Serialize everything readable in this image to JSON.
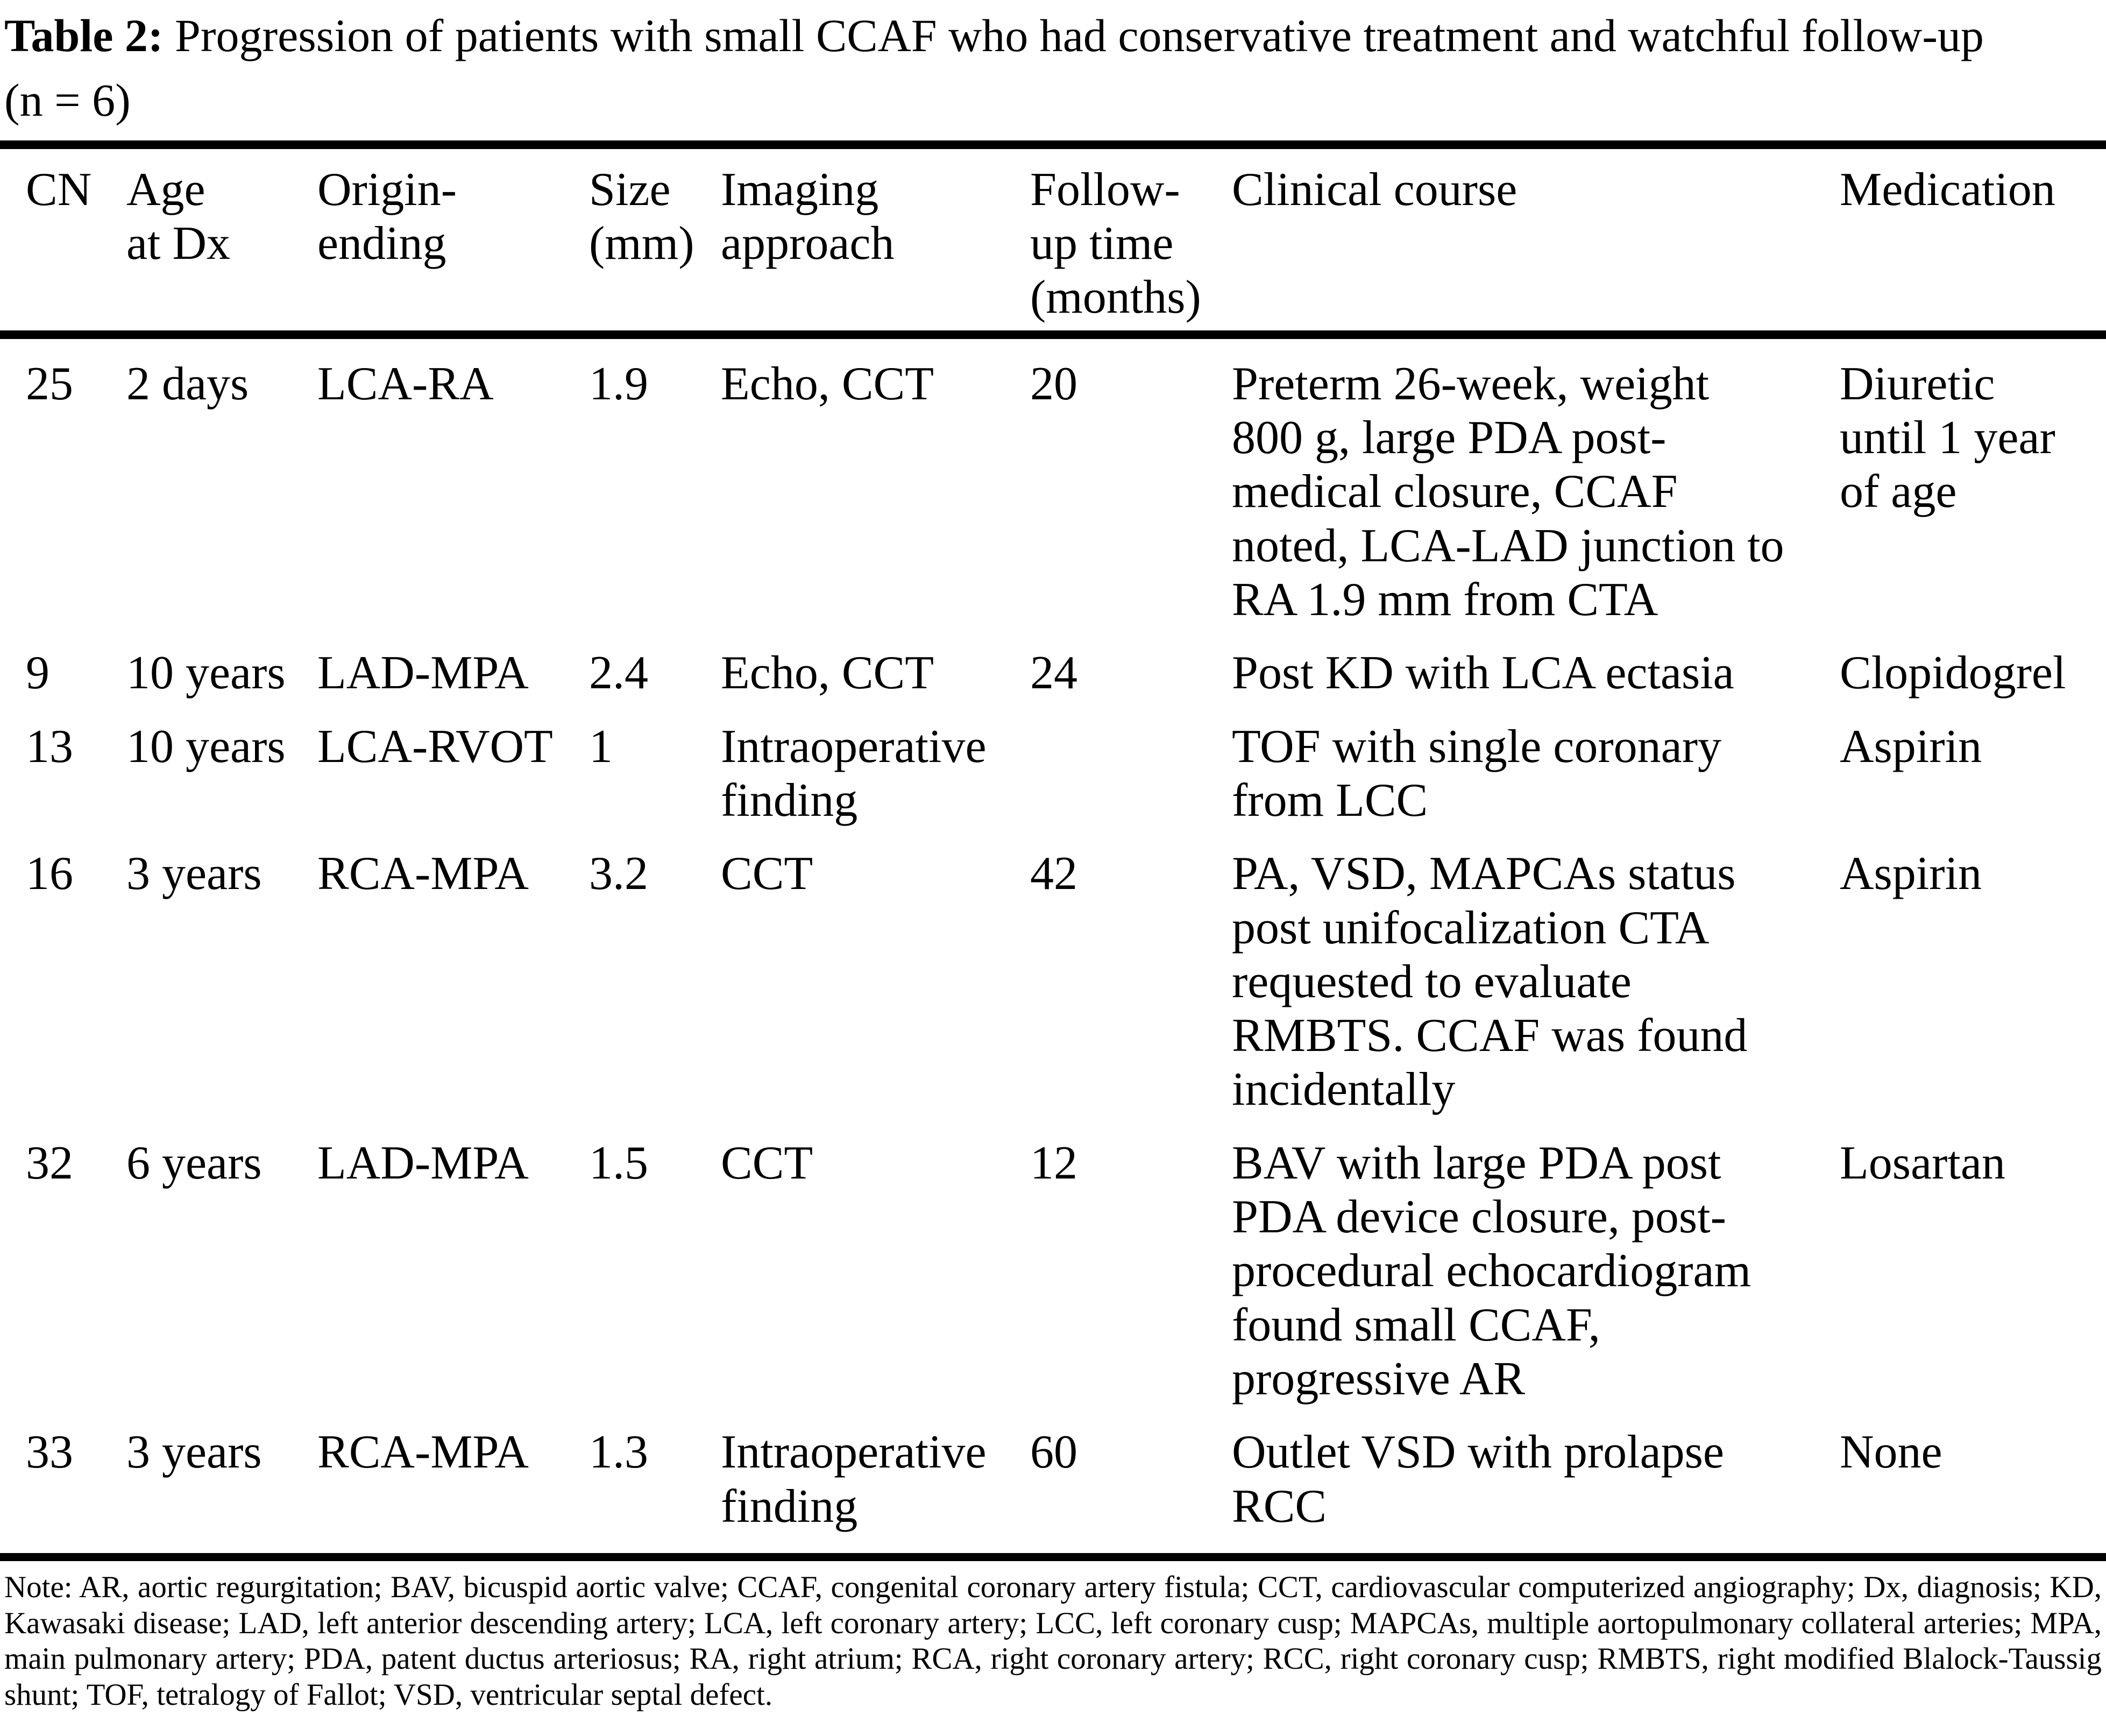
{
  "title": {
    "label": "Table 2:",
    "text": "Progression of patients with small CCAF who had conservative treatment and watchful follow-up",
    "sample_size": "(n = 6)"
  },
  "table": {
    "columns": [
      {
        "key": "cn",
        "label": "CN"
      },
      {
        "key": "age",
        "label": "Age\nat Dx"
      },
      {
        "key": "origin",
        "label": "Origin-\nending"
      },
      {
        "key": "size",
        "label": "Size\n(mm)"
      },
      {
        "key": "imaging",
        "label": "Imaging\napproach"
      },
      {
        "key": "followup",
        "label": "Follow-\nup time\n(months)"
      },
      {
        "key": "course",
        "label": "Clinical course"
      },
      {
        "key": "medication",
        "label": "Medication"
      }
    ],
    "rows": [
      {
        "cn": "25",
        "age": "2 days",
        "origin": "LCA-RA",
        "size": "1.9",
        "imaging": "Echo, CCT",
        "followup": "20",
        "course": "Preterm 26-week, weight\n800 g, large PDA post-\nmedical closure, CCAF\nnoted, LCA-LAD junction to\nRA 1.9 mm from CTA",
        "medication": "Diuretic\nuntil 1 year\nof age"
      },
      {
        "cn": "9",
        "age": "10 years",
        "origin": "LAD-MPA",
        "size": "2.4",
        "imaging": "Echo, CCT",
        "followup": "24",
        "course": "Post KD with LCA ectasia",
        "medication": "Clopidogrel"
      },
      {
        "cn": "13",
        "age": "10 years",
        "origin": "LCA-RVOT",
        "size": "1",
        "imaging": "Intraoperative\nfinding",
        "followup": "",
        "course": "TOF with single coronary\nfrom LCC",
        "medication": "Aspirin"
      },
      {
        "cn": "16",
        "age": "3 years",
        "origin": "RCA-MPA",
        "size": "3.2",
        "imaging": "CCT",
        "followup": "42",
        "course": "PA, VSD, MAPCAs status\npost unifocalization CTA\nrequested to evaluate\nRMBTS. CCAF was found\nincidentally",
        "medication": "Aspirin"
      },
      {
        "cn": "32",
        "age": "6 years",
        "origin": "LAD-MPA",
        "size": "1.5",
        "imaging": "CCT",
        "followup": "12",
        "course": "BAV with large PDA post\nPDA device closure, post-\nprocedural echocardiogram\nfound small CCAF,\nprogressive AR",
        "medication": "Losartan"
      },
      {
        "cn": "33",
        "age": "3 years",
        "origin": "RCA-MPA",
        "size": "1.3",
        "imaging": "Intraoperative\nfinding",
        "followup": "60",
        "course": "Outlet VSD with prolapse\nRCC",
        "medication": "None"
      }
    ]
  },
  "footnote": "Note: AR, aortic regurgitation; BAV, bicuspid aortic valve; CCAF, congenital coronary artery fistula; CCT, cardiovascular computerized angiography; Dx, diagnosis; KD, Kawasaki disease; LAD, left anterior descending artery; LCA, left coronary artery; LCC, left coronary cusp; MAPCAs, multiple aortopulmonary collateral arteries; MPA, main pulmonary artery; PDA, patent ductus arteriosus; RA, right atrium; RCA, right coronary artery; RCC, right coronary cusp; RMBTS, right modified Blalock-Taussig shunt; TOF, tetralogy of Fallot; VSD, ventricular septal defect."
}
